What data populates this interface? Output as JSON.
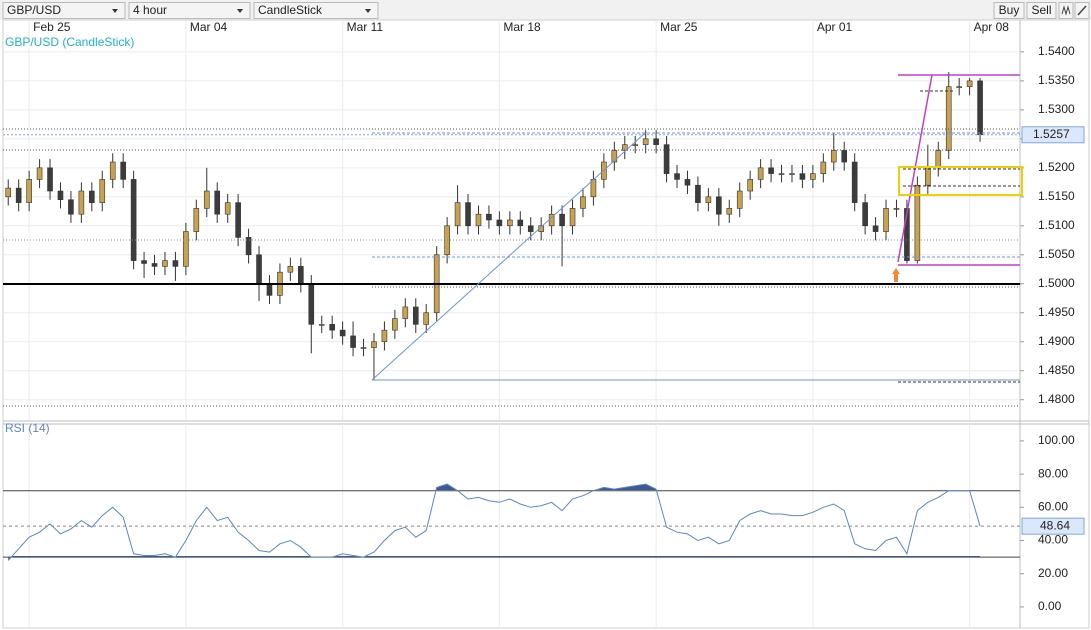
{
  "toolbar": {
    "symbol": "GBP/USD",
    "interval": "4 hour",
    "chart_style": "CandleStick",
    "buy": "Buy",
    "sell": "Sell"
  },
  "chart_data": [
    {
      "type": "candlestick",
      "title": "GBP/USD (CandleStick)",
      "categories": [
        null,
        null,
        "Feb 25",
        null,
        null,
        null,
        null,
        null,
        null,
        null,
        null,
        null,
        null,
        null,
        null,
        null,
        null,
        "Mar 04",
        null,
        null,
        null,
        null,
        null,
        null,
        null,
        null,
        null,
        null,
        null,
        null,
        null,
        null,
        "Mar 11",
        null,
        null,
        null,
        null,
        null,
        null,
        null,
        null,
        null,
        null,
        null,
        null,
        null,
        null,
        "Mar 18",
        null,
        null,
        null,
        null,
        null,
        null,
        null,
        null,
        null,
        null,
        null,
        null,
        null,
        null,
        "Mar 25",
        null,
        null,
        null,
        null,
        null,
        null,
        null,
        null,
        null,
        null,
        null,
        null,
        null,
        null,
        "Apr 01",
        null,
        null,
        null,
        null,
        null,
        null,
        null,
        null,
        null,
        null,
        null,
        null,
        null,
        null,
        "Apr 08",
        null
      ],
      "open": [
        1.515,
        1.5165,
        1.514,
        1.518,
        1.52,
        1.516,
        1.5145,
        1.512,
        1.516,
        1.514,
        1.518,
        1.521,
        1.518,
        1.504,
        1.5035,
        1.503,
        1.504,
        1.503,
        1.509,
        1.513,
        1.516,
        1.512,
        1.514,
        1.508,
        1.505,
        1.5,
        1.498,
        1.502,
        1.503,
        1.5,
        1.493,
        1.493,
        1.492,
        1.491,
        1.489,
        1.489,
        1.49,
        1.492,
        1.494,
        1.496,
        1.493,
        1.495,
        1.505,
        1.51,
        1.514,
        1.51,
        1.512,
        1.511,
        1.51,
        1.511,
        1.51,
        1.509,
        1.51,
        1.512,
        1.51,
        1.513,
        1.515,
        1.518,
        1.521,
        1.523,
        1.524,
        1.524,
        1.525,
        1.524,
        1.519,
        1.518,
        1.517,
        1.514,
        1.515,
        1.512,
        1.513,
        1.516,
        1.518,
        1.52,
        1.519,
        1.519,
        1.519,
        1.518,
        1.519,
        1.521,
        1.523,
        1.521,
        1.514,
        1.51,
        1.509,
        1.513,
        1.513,
        1.504,
        1.517,
        1.52,
        1.523,
        1.534,
        1.534,
        1.535
      ],
      "high": [
        1.518,
        1.518,
        1.5195,
        1.5215,
        1.5215,
        1.5175,
        1.516,
        1.5175,
        1.5175,
        1.5195,
        1.5225,
        1.5225,
        1.5195,
        1.5055,
        1.505,
        1.5055,
        1.5055,
        1.5105,
        1.5145,
        1.52,
        1.5175,
        1.5155,
        1.5155,
        1.5095,
        1.5065,
        1.5015,
        1.5035,
        1.5045,
        1.5045,
        1.5015,
        1.4945,
        1.4945,
        1.4935,
        1.4935,
        1.4905,
        1.4915,
        1.4935,
        1.4955,
        1.4975,
        1.4975,
        1.4965,
        1.5065,
        1.5115,
        1.517,
        1.5155,
        1.5135,
        1.5135,
        1.5125,
        1.5125,
        1.5125,
        1.5115,
        1.5115,
        1.5135,
        1.5135,
        1.5145,
        1.5165,
        1.5195,
        1.5225,
        1.5245,
        1.5255,
        1.5255,
        1.5265,
        1.5265,
        1.5255,
        1.5205,
        1.5195,
        1.5185,
        1.5165,
        1.5165,
        1.5145,
        1.5175,
        1.5195,
        1.5215,
        1.5215,
        1.5205,
        1.5205,
        1.5205,
        1.5205,
        1.5225,
        1.526,
        1.5245,
        1.5225,
        1.5155,
        1.5115,
        1.5145,
        1.5145,
        1.5145,
        1.5185,
        1.524,
        1.5245,
        1.5365,
        1.5355,
        1.5355,
        1.5355
      ],
      "low": [
        1.5135,
        1.5125,
        1.5125,
        1.5165,
        1.5145,
        1.513,
        1.5105,
        1.5105,
        1.5125,
        1.5125,
        1.5165,
        1.5165,
        1.5025,
        1.501,
        1.5015,
        1.5015,
        1.5005,
        1.5015,
        1.5075,
        1.5115,
        1.5105,
        1.5105,
        1.5065,
        1.5035,
        1.497,
        1.4965,
        1.4965,
        1.5005,
        1.4985,
        1.488,
        1.4915,
        1.4905,
        1.4895,
        1.4875,
        1.4875,
        1.4835,
        1.4885,
        1.4905,
        1.4925,
        1.4915,
        1.4915,
        1.4935,
        1.5035,
        1.5085,
        1.5085,
        1.5085,
        1.5095,
        1.5085,
        1.5085,
        1.5085,
        1.5075,
        1.5075,
        1.5085,
        1.503,
        1.5085,
        1.5115,
        1.5135,
        1.5165,
        1.5195,
        1.5215,
        1.5225,
        1.5225,
        1.5225,
        1.5175,
        1.5165,
        1.5155,
        1.5125,
        1.5125,
        1.51,
        1.5105,
        1.5115,
        1.5145,
        1.5165,
        1.5175,
        1.5175,
        1.5175,
        1.5165,
        1.5165,
        1.5175,
        1.5195,
        1.5195,
        1.5125,
        1.5085,
        1.5075,
        1.5075,
        1.5115,
        1.5035,
        1.5035,
        1.5155,
        1.5185,
        1.5215,
        1.5325,
        1.5325,
        1.5245
      ],
      "close": [
        1.5165,
        1.514,
        1.518,
        1.52,
        1.516,
        1.5145,
        1.512,
        1.516,
        1.514,
        1.518,
        1.521,
        1.518,
        1.504,
        1.5035,
        1.503,
        1.504,
        1.503,
        1.509,
        1.513,
        1.516,
        1.512,
        1.514,
        1.508,
        1.505,
        1.5,
        1.498,
        1.502,
        1.503,
        1.5,
        1.493,
        1.493,
        1.492,
        1.491,
        1.489,
        1.489,
        1.49,
        1.492,
        1.494,
        1.496,
        1.493,
        1.495,
        1.505,
        1.51,
        1.514,
        1.51,
        1.512,
        1.511,
        1.51,
        1.511,
        1.51,
        1.509,
        1.51,
        1.512,
        1.51,
        1.513,
        1.515,
        1.518,
        1.521,
        1.523,
        1.524,
        1.524,
        1.525,
        1.524,
        1.519,
        1.518,
        1.517,
        1.514,
        1.515,
        1.512,
        1.513,
        1.516,
        1.518,
        1.52,
        1.519,
        1.519,
        1.519,
        1.518,
        1.519,
        1.521,
        1.523,
        1.521,
        1.514,
        1.51,
        1.509,
        1.513,
        1.513,
        1.504,
        1.517,
        1.52,
        1.523,
        1.534,
        1.534,
        1.535,
        1.5257
      ],
      "up_color": "#c7a24f",
      "down_color": "#3c3c3c",
      "ylim": [
        1.4765,
        1.5455
      ],
      "yticks": [
        {
          "value": 1.48,
          "label": "1.4800"
        },
        {
          "value": 1.485,
          "label": "1.4850"
        },
        {
          "value": 1.49,
          "label": "1.4900"
        },
        {
          "value": 1.495,
          "label": "1.4950"
        },
        {
          "value": 1.5,
          "label": "1.5000"
        },
        {
          "value": 1.505,
          "label": "1.5050"
        },
        {
          "value": 1.51,
          "label": "1.5100"
        },
        {
          "value": 1.515,
          "label": "1.5150"
        },
        {
          "value": 1.52,
          "label": "1.5200"
        },
        {
          "value": 1.525,
          "label": "1.5250"
        },
        {
          "value": 1.53,
          "label": "1.5300"
        },
        {
          "value": 1.535,
          "label": "1.5350"
        },
        {
          "value": 1.54,
          "label": "1.5400"
        }
      ],
      "grid": true
    },
    {
      "type": "line",
      "title": "RSI (14)",
      "values": [
        28,
        35,
        42,
        45,
        50,
        44,
        47,
        52,
        48,
        55,
        60,
        54,
        32,
        31,
        31,
        32,
        30,
        40,
        52,
        60,
        52,
        54,
        45,
        40,
        34,
        33,
        38,
        40,
        36,
        30,
        30,
        30,
        32,
        31,
        30,
        33,
        40,
        46,
        48,
        42,
        46,
        72,
        74,
        70,
        65,
        66,
        64,
        63,
        65,
        62,
        60,
        61,
        63,
        58,
        65,
        67,
        70,
        72,
        71,
        72,
        73,
        74,
        71,
        48,
        45,
        44,
        40,
        42,
        38,
        40,
        52,
        56,
        58,
        56,
        56,
        55,
        55,
        57,
        60,
        62,
        58,
        38,
        35,
        34,
        40,
        42,
        32,
        58,
        63,
        66,
        70,
        70,
        70,
        48.64
      ],
      "color": "#5b86c9",
      "fill_color": "#3b5a98",
      "bands": [
        30,
        70
      ],
      "ylim": [
        -12.7,
        110.2
      ],
      "yticks": [
        {
          "value": 0,
          "label": "0.00"
        },
        {
          "value": 20,
          "label": "20.00"
        },
        {
          "value": 40,
          "label": "40.00"
        },
        {
          "value": 60,
          "label": "60.00"
        },
        {
          "value": 80,
          "label": "80.00"
        },
        {
          "value": 100,
          "label": "100.00"
        }
      ],
      "grid": true
    }
  ]
}
